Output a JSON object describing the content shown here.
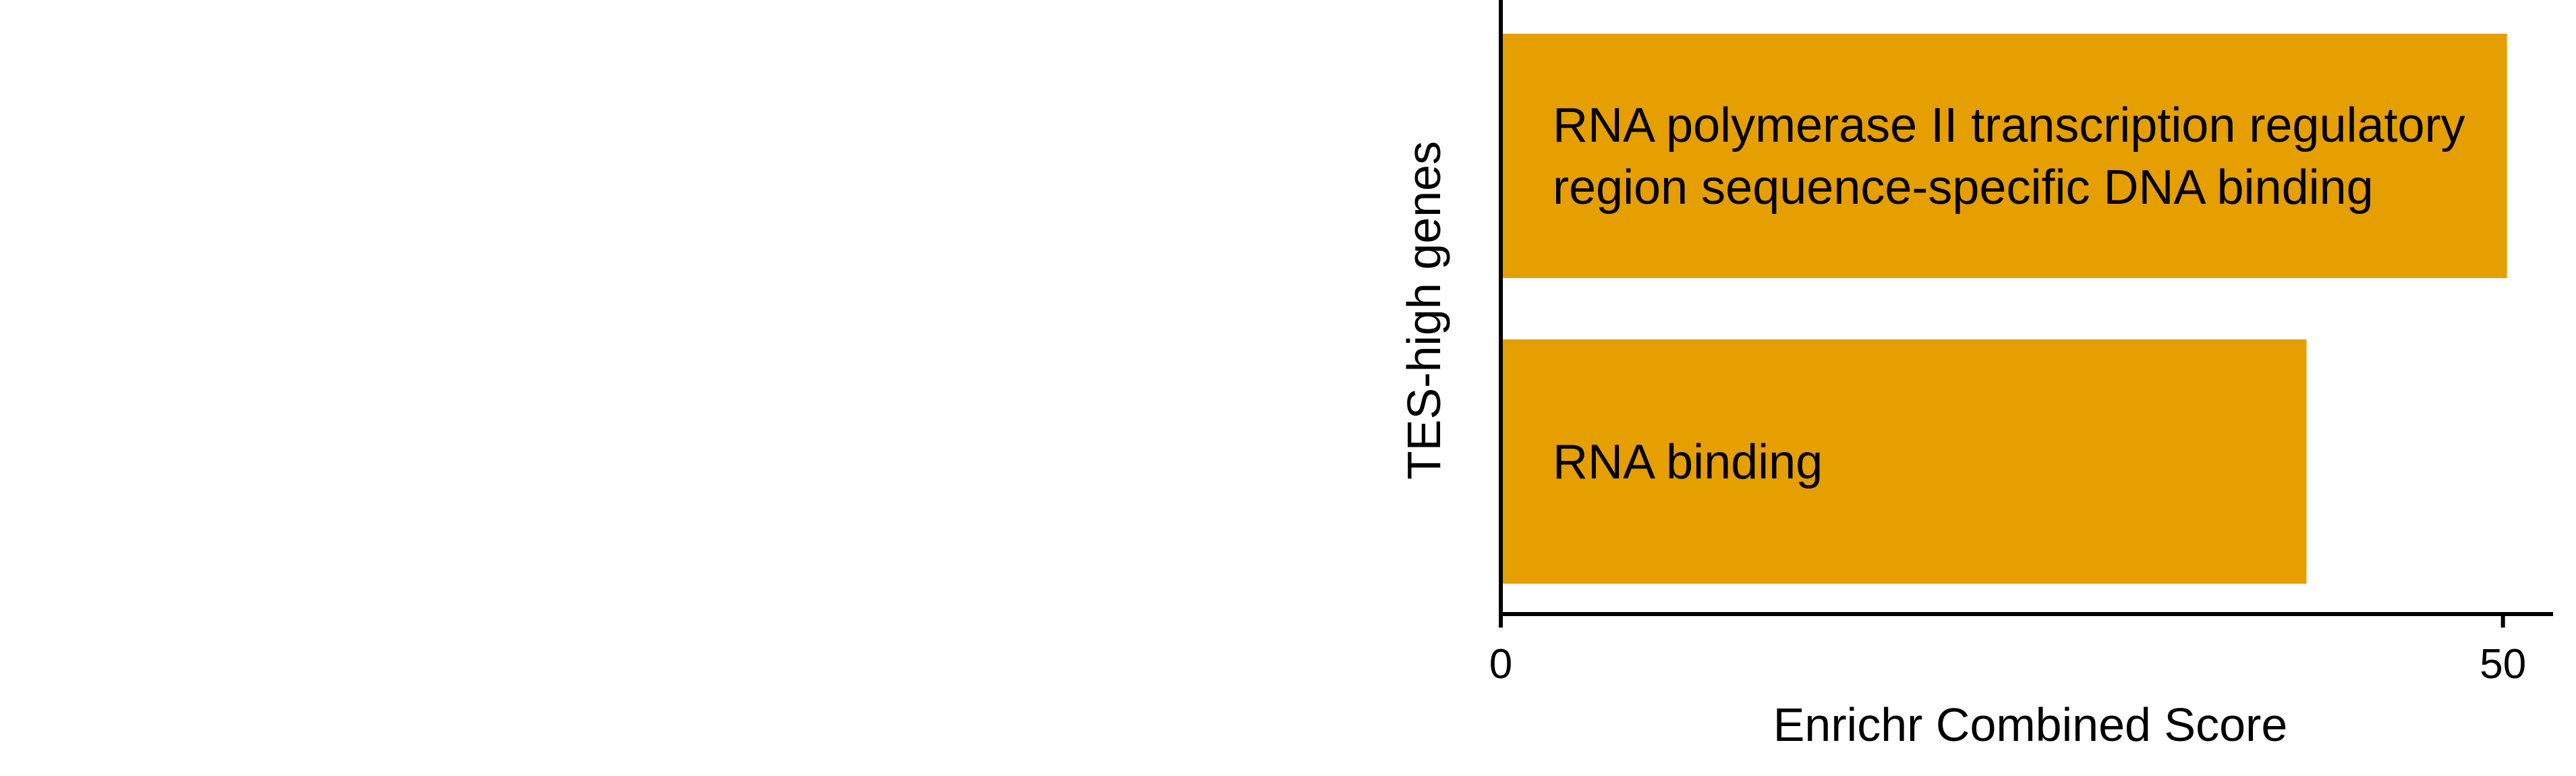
{
  "chart_data": {
    "type": "bar",
    "orientation": "horizontal",
    "categories": [
      [
        "RNA polymerase II transcription regulatory",
        "region sequence-specific DNA binding"
      ],
      [
        "RNA binding"
      ]
    ],
    "values": [
      50.2,
      40.2
    ],
    "xlabel": "Enrichr Combined Score",
    "ylabel": "TES-high genes",
    "xticks": [
      0,
      50
    ],
    "xlim": [
      0,
      52.5
    ],
    "grid": false,
    "legend": "none",
    "bar_color": "#E69F00"
  }
}
